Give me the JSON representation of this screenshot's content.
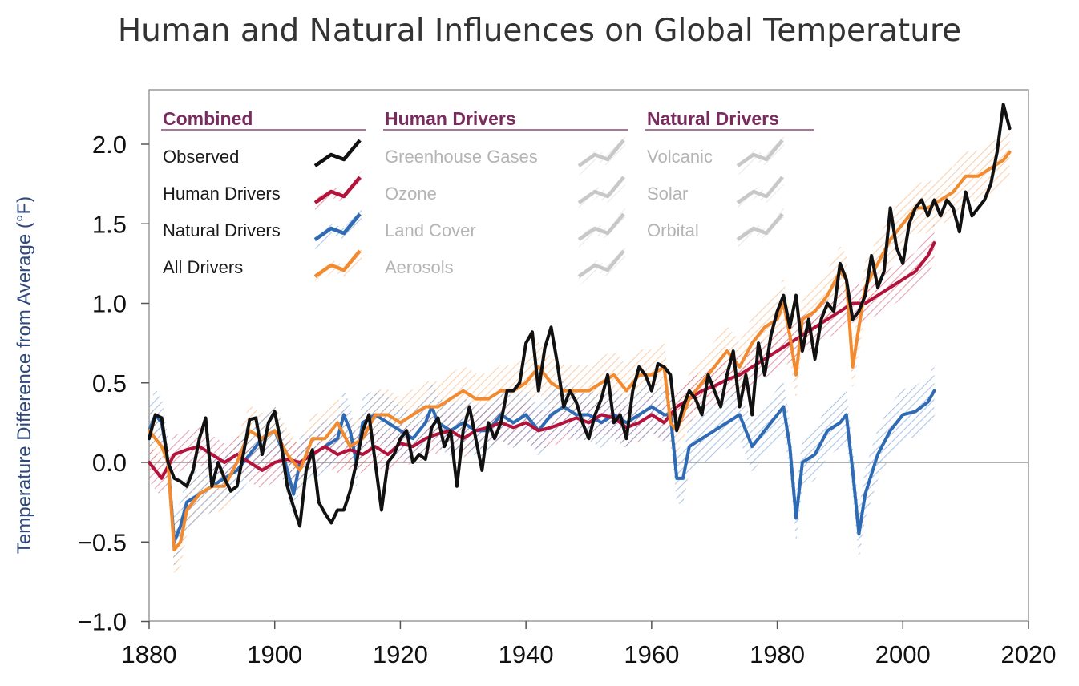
{
  "title": "Human and Natural Influences on Global Temperature",
  "chart_data": {
    "type": "line",
    "title": "Human and Natural Influences on Global Temperature",
    "xlabel": "",
    "ylabel": "Temperature Difference from Average (°F)",
    "xlim": [
      1880,
      2020
    ],
    "ylim": [
      -1.0,
      2.3
    ],
    "x_ticks": [
      "1880",
      "1900",
      "1920",
      "1940",
      "1960",
      "1980",
      "2000",
      "2020"
    ],
    "y_ticks": [
      "−1.0",
      "−0.5",
      "0.0",
      "0.5",
      "1.0",
      "1.5",
      "2.0"
    ],
    "grid": false,
    "zero_line": true,
    "legend": {
      "placement": "top-left",
      "groups": [
        {
          "heading": "Combined",
          "items": [
            {
              "label": "Observed",
              "color": "#111111",
              "active": true
            },
            {
              "label": "Human Drivers",
              "color": "#b5123b",
              "active": true
            },
            {
              "label": "Natural Drivers",
              "color": "#2e6bb4",
              "active": true
            },
            {
              "label": "All Drivers",
              "color": "#f28a30",
              "active": true
            }
          ]
        },
        {
          "heading": "Human Drivers",
          "items": [
            {
              "label": "Greenhouse Gases",
              "color": "#c8c8c8",
              "active": false
            },
            {
              "label": "Ozone",
              "color": "#c8c8c8",
              "active": false
            },
            {
              "label": "Land Cover",
              "color": "#c8c8c8",
              "active": false
            },
            {
              "label": "Aerosols",
              "color": "#c8c8c8",
              "active": false
            }
          ]
        },
        {
          "heading": "Natural Drivers",
          "items": [
            {
              "label": "Volcanic",
              "color": "#c8c8c8",
              "active": false
            },
            {
              "label": "Solar",
              "color": "#c8c8c8",
              "active": false
            },
            {
              "label": "Orbital",
              "color": "#c8c8c8",
              "active": false
            }
          ]
        }
      ]
    },
    "series": [
      {
        "name": "Observed",
        "color": "#111111",
        "x": [
          1880,
          1881,
          1882,
          1883,
          1884,
          1885,
          1886,
          1887,
          1888,
          1889,
          1890,
          1891,
          1892,
          1893,
          1894,
          1895,
          1896,
          1897,
          1898,
          1899,
          1900,
          1901,
          1902,
          1903,
          1904,
          1905,
          1906,
          1907,
          1908,
          1909,
          1910,
          1911,
          1912,
          1913,
          1914,
          1915,
          1916,
          1917,
          1918,
          1919,
          1920,
          1921,
          1922,
          1923,
          1924,
          1925,
          1926,
          1927,
          1928,
          1929,
          1930,
          1931,
          1932,
          1933,
          1934,
          1935,
          1936,
          1937,
          1938,
          1939,
          1940,
          1941,
          1942,
          1943,
          1944,
          1945,
          1946,
          1947,
          1948,
          1949,
          1950,
          1951,
          1952,
          1953,
          1954,
          1955,
          1956,
          1957,
          1958,
          1959,
          1960,
          1961,
          1962,
          1963,
          1964,
          1965,
          1966,
          1967,
          1968,
          1969,
          1970,
          1971,
          1972,
          1973,
          1974,
          1975,
          1976,
          1977,
          1978,
          1979,
          1980,
          1981,
          1982,
          1983,
          1984,
          1985,
          1986,
          1987,
          1988,
          1989,
          1990,
          1991,
          1992,
          1993,
          1994,
          1995,
          1996,
          1997,
          1998,
          1999,
          2000,
          2001,
          2002,
          2003,
          2004,
          2005,
          2006,
          2007,
          2008,
          2009,
          2010,
          2011,
          2012,
          2013,
          2014,
          2015,
          2016,
          2017
        ],
        "y": [
          0.15,
          0.3,
          0.28,
          0.0,
          -0.1,
          -0.12,
          -0.15,
          -0.05,
          0.15,
          0.28,
          -0.15,
          0.0,
          -0.1,
          -0.18,
          -0.15,
          0.05,
          0.27,
          0.28,
          0.05,
          0.25,
          0.32,
          0.12,
          -0.15,
          -0.28,
          -0.4,
          -0.05,
          0.08,
          -0.25,
          -0.32,
          -0.38,
          -0.3,
          -0.3,
          -0.18,
          0.0,
          0.2,
          0.3,
          0.0,
          -0.3,
          0.0,
          0.05,
          0.15,
          0.2,
          0.0,
          0.05,
          0.02,
          0.22,
          0.28,
          0.1,
          0.2,
          -0.15,
          0.2,
          0.35,
          0.15,
          -0.05,
          0.25,
          0.15,
          0.25,
          0.45,
          0.45,
          0.5,
          0.75,
          0.82,
          0.45,
          0.72,
          0.85,
          0.62,
          0.35,
          0.45,
          0.38,
          0.25,
          0.15,
          0.3,
          0.4,
          0.55,
          0.25,
          0.3,
          0.15,
          0.45,
          0.6,
          0.55,
          0.45,
          0.62,
          0.6,
          0.55,
          0.2,
          0.35,
          0.45,
          0.4,
          0.3,
          0.55,
          0.45,
          0.35,
          0.55,
          0.7,
          0.35,
          0.55,
          0.3,
          0.75,
          0.55,
          0.8,
          0.95,
          1.05,
          0.85,
          1.05,
          0.7,
          0.9,
          0.65,
          0.9,
          1.0,
          0.95,
          1.25,
          1.15,
          0.9,
          0.95,
          1.05,
          1.3,
          1.1,
          1.2,
          1.6,
          1.35,
          1.25,
          1.5,
          1.6,
          1.65,
          1.55,
          1.65,
          1.55,
          1.65,
          1.6,
          1.45,
          1.7,
          1.55,
          1.6,
          1.65,
          1.75,
          1.95,
          2.25,
          2.1
        ]
      },
      {
        "name": "Human Drivers",
        "color": "#b5123b",
        "x": [
          1880,
          1882,
          1884,
          1886,
          1888,
          1890,
          1892,
          1894,
          1896,
          1898,
          1900,
          1902,
          1904,
          1906,
          1908,
          1910,
          1912,
          1914,
          1916,
          1918,
          1920,
          1922,
          1924,
          1926,
          1928,
          1930,
          1932,
          1934,
          1936,
          1938,
          1940,
          1942,
          1944,
          1946,
          1948,
          1950,
          1952,
          1954,
          1956,
          1958,
          1960,
          1962,
          1964,
          1966,
          1968,
          1970,
          1972,
          1974,
          1976,
          1978,
          1980,
          1982,
          1984,
          1986,
          1988,
          1990,
          1992,
          1994,
          1996,
          1998,
          2000,
          2002,
          2004,
          2005
        ],
        "y": [
          0.0,
          -0.1,
          0.05,
          0.08,
          0.1,
          0.05,
          0.0,
          0.05,
          0.0,
          -0.05,
          0.0,
          0.02,
          0.0,
          0.05,
          0.1,
          0.05,
          0.08,
          0.05,
          0.1,
          0.05,
          0.12,
          0.1,
          0.15,
          0.18,
          0.2,
          0.15,
          0.2,
          0.22,
          0.25,
          0.22,
          0.25,
          0.2,
          0.22,
          0.25,
          0.28,
          0.25,
          0.3,
          0.28,
          0.22,
          0.25,
          0.3,
          0.25,
          0.35,
          0.4,
          0.45,
          0.48,
          0.52,
          0.55,
          0.6,
          0.65,
          0.7,
          0.75,
          0.8,
          0.85,
          0.9,
          0.95,
          1.0,
          1.0,
          1.05,
          1.1,
          1.15,
          1.2,
          1.3,
          1.38
        ]
      },
      {
        "name": "Natural Drivers",
        "color": "#2e6bb4",
        "x": [
          1880,
          1881,
          1882,
          1883,
          1884,
          1885,
          1886,
          1888,
          1890,
          1892,
          1894,
          1896,
          1898,
          1900,
          1901,
          1902,
          1903,
          1904,
          1906,
          1908,
          1910,
          1911,
          1912,
          1913,
          1914,
          1916,
          1918,
          1920,
          1922,
          1924,
          1925,
          1926,
          1928,
          1930,
          1932,
          1934,
          1936,
          1938,
          1940,
          1942,
          1944,
          1946,
          1948,
          1950,
          1952,
          1954,
          1956,
          1958,
          1960,
          1962,
          1963,
          1964,
          1965,
          1966,
          1968,
          1970,
          1972,
          1974,
          1976,
          1978,
          1980,
          1981,
          1982,
          1983,
          1984,
          1986,
          1988,
          1990,
          1991,
          1992,
          1993,
          1994,
          1996,
          1998,
          2000,
          2002,
          2004,
          2005
        ],
        "y": [
          0.2,
          0.3,
          0.25,
          0.0,
          -0.5,
          -0.4,
          -0.25,
          -0.2,
          -0.15,
          -0.1,
          -0.05,
          0.05,
          0.15,
          0.2,
          0.1,
          -0.05,
          -0.2,
          0.0,
          0.05,
          0.1,
          0.15,
          0.3,
          0.2,
          0.0,
          0.25,
          0.3,
          0.25,
          0.2,
          0.15,
          0.25,
          0.35,
          0.25,
          0.2,
          0.25,
          0.2,
          0.2,
          0.3,
          0.25,
          0.3,
          0.2,
          0.3,
          0.35,
          0.3,
          0.3,
          0.25,
          0.3,
          0.25,
          0.3,
          0.35,
          0.3,
          0.3,
          -0.1,
          -0.1,
          0.1,
          0.15,
          0.2,
          0.25,
          0.3,
          0.1,
          0.2,
          0.3,
          0.35,
          0.1,
          -0.35,
          0.0,
          0.05,
          0.2,
          0.25,
          0.3,
          -0.05,
          -0.45,
          -0.2,
          0.05,
          0.2,
          0.3,
          0.32,
          0.38,
          0.45
        ]
      },
      {
        "name": "All Drivers",
        "color": "#f28a30",
        "x": [
          1880,
          1881,
          1882,
          1883,
          1884,
          1885,
          1886,
          1888,
          1890,
          1892,
          1894,
          1896,
          1898,
          1900,
          1902,
          1904,
          1906,
          1908,
          1910,
          1912,
          1914,
          1916,
          1918,
          1920,
          1922,
          1924,
          1926,
          1928,
          1930,
          1932,
          1934,
          1936,
          1938,
          1940,
          1942,
          1944,
          1946,
          1948,
          1950,
          1952,
          1954,
          1956,
          1958,
          1960,
          1962,
          1963,
          1964,
          1966,
          1968,
          1970,
          1972,
          1974,
          1976,
          1978,
          1980,
          1981,
          1982,
          1983,
          1984,
          1986,
          1988,
          1990,
          1991,
          1992,
          1993,
          1994,
          1996,
          1998,
          2000,
          2002,
          2004,
          2006,
          2008,
          2010,
          2012,
          2014,
          2016,
          2017
        ],
        "y": [
          0.2,
          0.15,
          0.1,
          0.0,
          -0.55,
          -0.5,
          -0.3,
          -0.2,
          -0.15,
          -0.15,
          0.0,
          0.2,
          0.15,
          0.2,
          0.05,
          -0.05,
          0.15,
          0.15,
          0.25,
          0.1,
          0.15,
          0.3,
          0.3,
          0.25,
          0.3,
          0.35,
          0.35,
          0.4,
          0.45,
          0.4,
          0.4,
          0.45,
          0.45,
          0.5,
          0.6,
          0.5,
          0.45,
          0.45,
          0.45,
          0.5,
          0.55,
          0.45,
          0.55,
          0.55,
          0.6,
          0.25,
          0.2,
          0.4,
          0.5,
          0.6,
          0.7,
          0.6,
          0.75,
          0.85,
          0.9,
          1.0,
          0.8,
          0.55,
          0.9,
          0.95,
          1.05,
          1.2,
          1.15,
          0.6,
          0.85,
          1.1,
          1.25,
          1.4,
          1.5,
          1.6,
          1.6,
          1.65,
          1.7,
          1.8,
          1.8,
          1.85,
          1.9,
          1.95
        ]
      }
    ]
  }
}
